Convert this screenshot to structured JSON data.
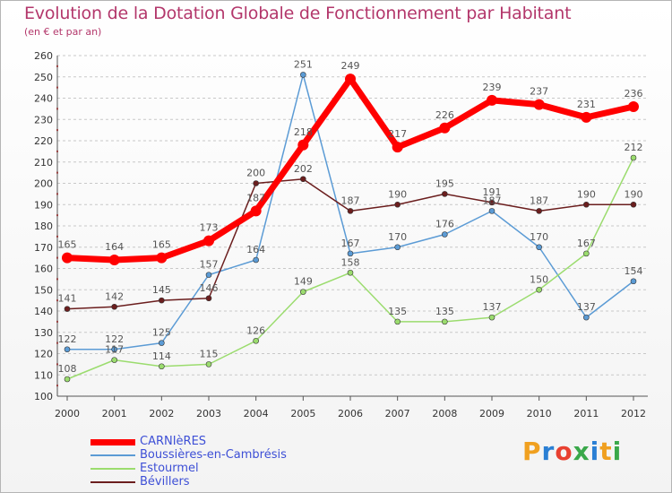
{
  "header": {
    "title": "Evolution de la Dotation Globale de Fonctionnement par Habitant",
    "subtitle": "(en € et par an)"
  },
  "brand": {
    "logo_text": "Proxiti"
  },
  "colors": {
    "title": "#b3376b",
    "legend_text": "#3d4fd6",
    "grid": "#c8c8c8"
  },
  "chart_data": {
    "type": "line",
    "title": "Evolution de la Dotation Globale de Fonctionnement par Habitant",
    "subtitle": "(en € et par an)",
    "xlabel": "",
    "ylabel": "",
    "x": [
      "2000",
      "2001",
      "2002",
      "2003",
      "2004",
      "2005",
      "2006",
      "2007",
      "2008",
      "2009",
      "2010",
      "2011",
      "2012"
    ],
    "ylim": [
      100,
      260
    ],
    "yticks": [
      100,
      110,
      120,
      130,
      140,
      150,
      160,
      170,
      180,
      190,
      200,
      210,
      220,
      230,
      240,
      250,
      260
    ],
    "grid": "horizontal dashed",
    "legend": "bottom-left",
    "series": [
      {
        "name": "CARNIèRES",
        "color": "#ff0000",
        "values": [
          165,
          164,
          165,
          173,
          187,
          218,
          249,
          217,
          226,
          239,
          237,
          231,
          236
        ]
      },
      {
        "name": "Boussières-en-Cambrésis",
        "color": "#5b9bd5",
        "values": [
          122,
          122,
          125,
          157,
          164,
          251,
          167,
          170,
          176,
          187,
          170,
          137,
          154
        ]
      },
      {
        "name": "Estourmel",
        "color": "#9bdc6e",
        "values": [
          108,
          117,
          114,
          115,
          126,
          149,
          158,
          135,
          135,
          137,
          150,
          167,
          212
        ]
      },
      {
        "name": "Bévillers",
        "color": "#6b1e1e",
        "values": [
          141,
          142,
          145,
          146,
          200,
          202,
          187,
          190,
          195,
          191,
          187,
          190,
          190
        ]
      }
    ],
    "data_labels": [
      [
        "165",
        "164",
        "165",
        "173",
        "187",
        "218",
        "249",
        "217",
        "226",
        "239",
        "237",
        "231",
        "236"
      ],
      [
        "122",
        "122",
        "125",
        "157",
        "164",
        "251",
        "167",
        "170",
        "176",
        "187",
        "170",
        "137",
        "154"
      ],
      [
        "108",
        "117",
        "114",
        "115",
        "126",
        "149",
        "158",
        "135",
        "135",
        "137",
        "150",
        "167",
        "212"
      ],
      [
        "141",
        "142",
        "145",
        "146",
        "200",
        "202",
        "187",
        "190",
        "195",
        "191",
        "187",
        "190",
        "190"
      ]
    ]
  }
}
